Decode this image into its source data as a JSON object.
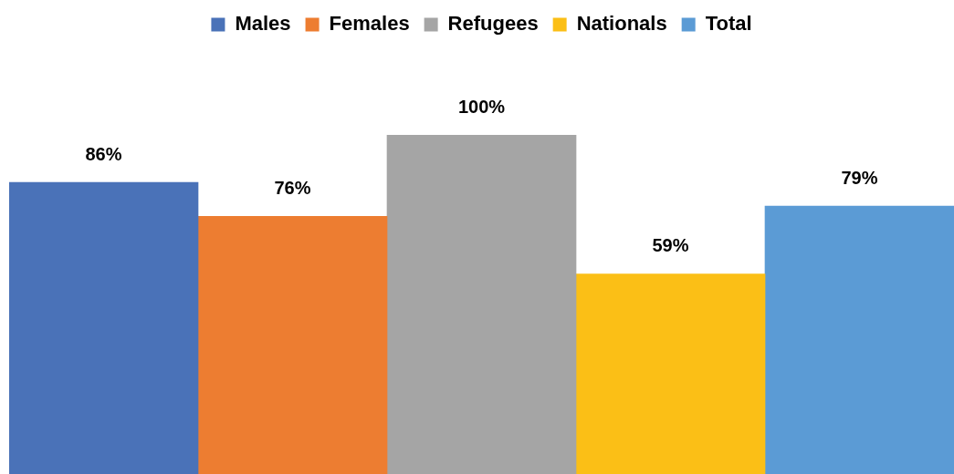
{
  "chart_data": {
    "type": "bar",
    "categories": [
      null
    ],
    "legend": "top",
    "series": [
      {
        "name": "Males",
        "color": "#4a72b8",
        "values": [
          86
        ],
        "value_labels": [
          "86%"
        ]
      },
      {
        "name": "Females",
        "color": "#ed7d31",
        "values": [
          76
        ],
        "value_labels": [
          "76%"
        ]
      },
      {
        "name": "Refugees",
        "color": "#a5a5a5",
        "values": [
          100
        ],
        "value_labels": [
          "100%"
        ]
      },
      {
        "name": "Nationals",
        "color": "#fbbf16",
        "values": [
          59
        ],
        "value_labels": [
          "59%"
        ]
      },
      {
        "name": "Total",
        "color": "#5b9bd5",
        "values": [
          79
        ],
        "value_labels": [
          "79%"
        ]
      }
    ]
  }
}
